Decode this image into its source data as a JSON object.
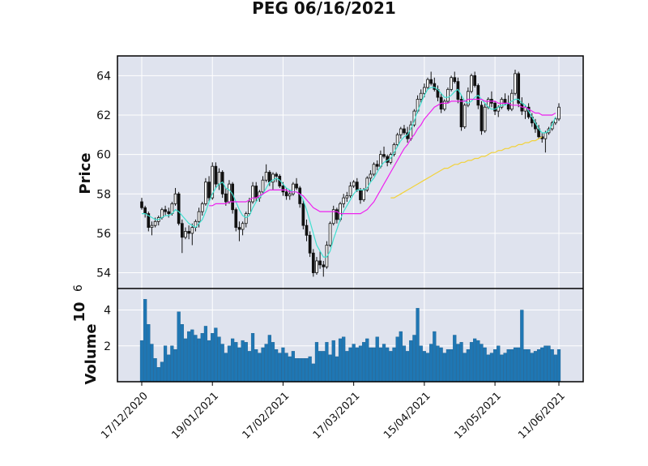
{
  "chart_data": {
    "type": "candlestick",
    "title": "PEG  06/16/2021",
    "price_panel": {
      "ylabel": "Price",
      "ylim": [
        53.2,
        65.0
      ],
      "yticks": [
        54,
        56,
        58,
        60,
        62,
        64
      ],
      "candles": [
        [
          57.6,
          57.8,
          57.2,
          57.3
        ],
        [
          57.3,
          57.4,
          56.8,
          57.0
        ],
        [
          57.0,
          57.1,
          56.1,
          56.3
        ],
        [
          56.3,
          56.6,
          55.9,
          56.4
        ],
        [
          56.4,
          56.8,
          56.3,
          56.6
        ],
        [
          56.6,
          56.9,
          56.4,
          56.8
        ],
        [
          56.8,
          57.3,
          56.7,
          57.2
        ],
        [
          57.2,
          57.4,
          56.9,
          57.1
        ],
        [
          57.1,
          57.3,
          56.8,
          57.0
        ],
        [
          57.0,
          57.6,
          56.9,
          57.5
        ],
        [
          57.5,
          58.3,
          57.4,
          58.0
        ],
        [
          58.0,
          58.1,
          56.4,
          56.5
        ],
        [
          56.5,
          56.7,
          55.0,
          55.8
        ],
        [
          55.8,
          56.3,
          55.7,
          56.1
        ],
        [
          56.1,
          56.4,
          55.7,
          56.0
        ],
        [
          56.0,
          56.5,
          55.4,
          56.3
        ],
        [
          56.3,
          56.7,
          56.1,
          56.6
        ],
        [
          56.6,
          57.3,
          56.3,
          57.1
        ],
        [
          57.1,
          57.6,
          56.9,
          57.5
        ],
        [
          57.5,
          58.8,
          57.4,
          58.6
        ],
        [
          58.6,
          58.9,
          57.6,
          57.8
        ],
        [
          57.8,
          59.6,
          57.7,
          59.4
        ],
        [
          59.4,
          59.6,
          58.3,
          58.5
        ],
        [
          58.5,
          59.3,
          58.2,
          59.1
        ],
        [
          59.1,
          59.2,
          57.8,
          58.0
        ],
        [
          58.0,
          58.3,
          57.4,
          57.6
        ],
        [
          57.6,
          58.7,
          57.5,
          58.5
        ],
        [
          58.5,
          58.6,
          57.0,
          57.2
        ],
        [
          57.2,
          57.3,
          56.1,
          56.3
        ],
        [
          56.3,
          56.6,
          55.6,
          56.2
        ],
        [
          56.2,
          56.6,
          55.9,
          56.5
        ],
        [
          56.5,
          57.1,
          56.3,
          57.0
        ],
        [
          57.0,
          57.8,
          56.9,
          57.6
        ],
        [
          57.6,
          58.6,
          57.5,
          58.4
        ],
        [
          58.4,
          58.6,
          57.6,
          57.8
        ],
        [
          57.8,
          58.2,
          57.6,
          58.1
        ],
        [
          58.1,
          58.9,
          58.0,
          58.7
        ],
        [
          58.7,
          59.5,
          58.6,
          59.1
        ],
        [
          59.1,
          59.2,
          58.4,
          58.6
        ],
        [
          58.6,
          59.1,
          58.2,
          59.0
        ],
        [
          59.0,
          59.1,
          58.6,
          58.9
        ],
        [
          58.9,
          59.0,
          58.3,
          58.4
        ],
        [
          58.4,
          58.6,
          57.9,
          58.1
        ],
        [
          58.1,
          58.3,
          57.7,
          57.9
        ],
        [
          57.9,
          58.2,
          57.7,
          58.0
        ],
        [
          58.0,
          58.6,
          57.9,
          58.5
        ],
        [
          58.5,
          58.8,
          58.2,
          58.3
        ],
        [
          58.3,
          58.4,
          57.3,
          57.5
        ],
        [
          57.5,
          57.7,
          56.2,
          56.4
        ],
        [
          56.4,
          56.7,
          55.6,
          55.9
        ],
        [
          55.9,
          56.1,
          54.8,
          55.0
        ],
        [
          55.0,
          55.2,
          53.8,
          54.0
        ],
        [
          54.0,
          54.8,
          53.9,
          54.6
        ],
        [
          54.6,
          55.1,
          54.2,
          54.4
        ],
        [
          54.4,
          54.6,
          53.8,
          54.3
        ],
        [
          54.3,
          55.6,
          54.2,
          55.4
        ],
        [
          55.4,
          56.6,
          55.3,
          56.5
        ],
        [
          56.5,
          57.4,
          56.4,
          57.2
        ],
        [
          57.2,
          57.3,
          56.5,
          56.7
        ],
        [
          56.7,
          57.6,
          56.6,
          57.5
        ],
        [
          57.5,
          58.0,
          57.3,
          57.8
        ],
        [
          57.8,
          58.1,
          57.6,
          57.9
        ],
        [
          57.9,
          58.6,
          57.8,
          58.4
        ],
        [
          58.4,
          58.7,
          58.3,
          58.6
        ],
        [
          58.6,
          58.8,
          58.1,
          58.2
        ],
        [
          58.2,
          58.3,
          57.5,
          57.7
        ],
        [
          57.7,
          58.3,
          57.6,
          58.2
        ],
        [
          58.2,
          58.9,
          58.1,
          58.8
        ],
        [
          58.8,
          59.2,
          58.6,
          59.0
        ],
        [
          59.0,
          59.6,
          58.9,
          59.5
        ],
        [
          59.5,
          59.7,
          59.2,
          59.4
        ],
        [
          59.4,
          60.2,
          59.3,
          60.0
        ],
        [
          60.0,
          60.4,
          59.8,
          59.9
        ],
        [
          59.9,
          60.0,
          59.4,
          59.6
        ],
        [
          59.6,
          60.1,
          59.5,
          60.0
        ],
        [
          60.0,
          60.6,
          59.9,
          60.5
        ],
        [
          60.5,
          61.1,
          60.4,
          61.0
        ],
        [
          61.0,
          61.4,
          60.8,
          61.3
        ],
        [
          61.3,
          61.5,
          61.0,
          61.1
        ],
        [
          61.1,
          61.4,
          60.6,
          60.8
        ],
        [
          60.8,
          61.7,
          60.7,
          61.5
        ],
        [
          61.5,
          62.3,
          61.4,
          62.2
        ],
        [
          62.2,
          63.0,
          62.1,
          62.8
        ],
        [
          62.8,
          63.3,
          62.6,
          63.1
        ],
        [
          63.1,
          63.6,
          62.9,
          63.4
        ],
        [
          63.4,
          63.9,
          63.3,
          63.8
        ],
        [
          63.8,
          64.2,
          63.5,
          63.6
        ],
        [
          63.6,
          63.9,
          63.2,
          63.3
        ],
        [
          63.3,
          63.5,
          62.7,
          62.9
        ],
        [
          62.9,
          63.1,
          62.1,
          62.3
        ],
        [
          62.3,
          62.8,
          62.2,
          62.7
        ],
        [
          62.7,
          63.4,
          62.6,
          63.3
        ],
        [
          63.3,
          64.0,
          63.2,
          63.9
        ],
        [
          63.9,
          64.2,
          63.6,
          63.7
        ],
        [
          63.7,
          63.9,
          62.6,
          62.8
        ],
        [
          62.8,
          63.0,
          61.2,
          61.4
        ],
        [
          61.4,
          62.6,
          61.3,
          62.5
        ],
        [
          62.5,
          63.4,
          62.4,
          63.2
        ],
        [
          63.2,
          64.1,
          63.1,
          64.0
        ],
        [
          64.0,
          64.2,
          63.4,
          63.5
        ],
        [
          63.5,
          63.6,
          62.3,
          62.5
        ],
        [
          62.5,
          62.7,
          61.0,
          61.2
        ],
        [
          61.2,
          62.6,
          61.1,
          62.4
        ],
        [
          62.4,
          62.9,
          62.3,
          62.8
        ],
        [
          62.8,
          63.2,
          62.4,
          62.6
        ],
        [
          62.6,
          62.7,
          62.0,
          62.2
        ],
        [
          62.2,
          62.5,
          61.9,
          62.4
        ],
        [
          62.4,
          62.9,
          62.3,
          62.8
        ],
        [
          62.8,
          63.1,
          62.5,
          62.6
        ],
        [
          62.6,
          63.0,
          62.2,
          62.3
        ],
        [
          62.3,
          63.3,
          62.2,
          63.1
        ],
        [
          63.1,
          64.3,
          63.0,
          64.1
        ],
        [
          64.1,
          64.2,
          62.4,
          62.6
        ],
        [
          62.6,
          62.9,
          62.0,
          62.2
        ],
        [
          62.2,
          62.5,
          61.8,
          62.4
        ],
        [
          62.4,
          62.6,
          61.8,
          61.9
        ],
        [
          61.9,
          62.1,
          61.4,
          61.6
        ],
        [
          61.6,
          61.8,
          61.1,
          61.3
        ],
        [
          61.3,
          61.5,
          60.8,
          60.9
        ],
        [
          60.9,
          61.1,
          60.6,
          60.8
        ],
        [
          60.8,
          61.2,
          60.1,
          61.1
        ],
        [
          61.1,
          61.4,
          61.0,
          61.3
        ],
        [
          61.3,
          61.7,
          61.2,
          61.6
        ],
        [
          61.6,
          61.9,
          61.5,
          61.8
        ],
        [
          61.8,
          62.6,
          61.7,
          62.4
        ]
      ],
      "sma_cyan": [
        57.0,
        57.0,
        56.9,
        56.8,
        56.7,
        56.7,
        56.8,
        56.9,
        56.9,
        57.0,
        57.2,
        57.1,
        56.9,
        56.7,
        56.5,
        56.4,
        56.3,
        56.5,
        56.7,
        57.1,
        57.6,
        58.0,
        58.3,
        58.5,
        58.6,
        58.3,
        58.2,
        58.0,
        57.6,
        57.2,
        56.9,
        56.8,
        56.9,
        57.3,
        57.6,
        57.8,
        58.0,
        58.3,
        58.6,
        58.7,
        58.8,
        58.7,
        58.5,
        58.3,
        58.2,
        58.1,
        58.1,
        58.0,
        57.7,
        57.2,
        56.6,
        56.0,
        55.4,
        55.1,
        54.8,
        54.8,
        55.1,
        55.7,
        56.2,
        56.7,
        57.1,
        57.4,
        57.7,
        58.0,
        58.2,
        58.2,
        58.2,
        58.3,
        58.6,
        58.8,
        59.1,
        59.4,
        59.6,
        59.7,
        59.8,
        60.1,
        60.4,
        60.7,
        60.9,
        61.0,
        61.3,
        61.7,
        62.2,
        62.6,
        63.0,
        63.3,
        63.4,
        63.4,
        63.3,
        63.1,
        62.9,
        62.9,
        63.0,
        63.2,
        63.3,
        63.0,
        62.7,
        62.6,
        62.7,
        62.9,
        63.0,
        62.8,
        62.6,
        62.4,
        62.3,
        62.3,
        62.4,
        62.5,
        62.5,
        62.6,
        62.7,
        62.8,
        62.8,
        62.6,
        62.5,
        62.2,
        61.9,
        61.6,
        61.3,
        61.1,
        61.1,
        61.2,
        61.5,
        61.9
      ],
      "sma_magenta": [
        null,
        null,
        null,
        null,
        null,
        null,
        null,
        null,
        null,
        null,
        null,
        null,
        null,
        null,
        null,
        null,
        null,
        null,
        null,
        null,
        57.4,
        57.4,
        57.5,
        57.5,
        57.5,
        57.5,
        57.6,
        57.6,
        57.6,
        57.6,
        57.6,
        57.6,
        57.7,
        57.8,
        57.8,
        57.9,
        58.0,
        58.1,
        58.2,
        58.2,
        58.2,
        58.2,
        58.2,
        58.2,
        58.1,
        58.1,
        58.1,
        58.0,
        57.9,
        57.7,
        57.5,
        57.3,
        57.2,
        57.1,
        57.1,
        57.1,
        57.1,
        57.1,
        57.1,
        57.0,
        57.0,
        57.0,
        57.0,
        57.0,
        57.0,
        57.0,
        57.1,
        57.2,
        57.4,
        57.6,
        57.9,
        58.2,
        58.5,
        58.8,
        59.1,
        59.4,
        59.7,
        60.0,
        60.3,
        60.5,
        60.8,
        61.0,
        61.3,
        61.5,
        61.8,
        62.0,
        62.2,
        62.4,
        62.5,
        62.6,
        62.6,
        62.6,
        62.7,
        62.7,
        62.7,
        62.7,
        62.7,
        62.8,
        62.8,
        62.8,
        62.8,
        62.8,
        62.7,
        62.7,
        62.7,
        62.7,
        62.6,
        62.6,
        62.6,
        62.6,
        62.5,
        62.5,
        62.5,
        62.4,
        62.4,
        62.3,
        62.2,
        62.1,
        62.1,
        62.0,
        62.0,
        62.0,
        62.0,
        62.1
      ],
      "sma_yellow": [
        null,
        null,
        null,
        null,
        null,
        null,
        null,
        null,
        null,
        null,
        null,
        null,
        null,
        null,
        null,
        null,
        null,
        null,
        null,
        null,
        null,
        null,
        null,
        null,
        null,
        null,
        null,
        null,
        null,
        null,
        null,
        null,
        null,
        null,
        null,
        null,
        null,
        null,
        null,
        null,
        null,
        null,
        null,
        null,
        null,
        null,
        null,
        null,
        null,
        null,
        null,
        null,
        null,
        null,
        null,
        null,
        null,
        null,
        null,
        null,
        null,
        null,
        null,
        null,
        null,
        null,
        null,
        null,
        null,
        null,
        null,
        null,
        null,
        null,
        57.8,
        57.8,
        57.9,
        58.0,
        58.1,
        58.2,
        58.3,
        58.4,
        58.5,
        58.6,
        58.7,
        58.8,
        58.9,
        59.0,
        59.1,
        59.2,
        59.3,
        59.3,
        59.4,
        59.5,
        59.5,
        59.6,
        59.6,
        59.7,
        59.7,
        59.8,
        59.8,
        59.9,
        59.9,
        60.0,
        60.1,
        60.1,
        60.2,
        60.2,
        60.3,
        60.3,
        60.4,
        60.4,
        60.5,
        60.5,
        60.6,
        60.6,
        60.7,
        60.7,
        60.8,
        60.9
      ]
    },
    "volume_panel": {
      "ylabel": "Volume",
      "exponent": "6",
      "ylim": [
        0,
        5.2
      ],
      "yticks": [
        2,
        4
      ],
      "unit": "millions",
      "values": [
        2.3,
        4.6,
        3.2,
        2.1,
        1.3,
        0.8,
        1.1,
        2.0,
        1.5,
        2.0,
        1.8,
        3.9,
        3.2,
        2.4,
        2.8,
        2.9,
        2.6,
        2.4,
        2.7,
        3.1,
        2.3,
        2.7,
        3.0,
        2.5,
        2.1,
        1.6,
        2.0,
        2.4,
        2.2,
        1.9,
        2.3,
        2.2,
        1.7,
        2.7,
        1.8,
        1.6,
        1.9,
        2.1,
        2.6,
        2.2,
        1.8,
        1.6,
        1.9,
        1.6,
        1.4,
        1.7,
        1.3,
        1.3,
        1.3,
        1.3,
        1.4,
        1.0,
        2.2,
        1.7,
        1.7,
        2.2,
        1.5,
        2.3,
        1.4,
        2.4,
        2.5,
        1.7,
        1.9,
        2.1,
        1.9,
        2.0,
        2.2,
        2.4,
        1.9,
        1.9,
        2.5,
        1.9,
        2.1,
        1.9,
        1.7,
        1.9,
        2.5,
        2.8,
        2.0,
        1.7,
        2.3,
        2.6,
        4.1,
        2.0,
        1.7,
        1.6,
        2.1,
        2.8,
        2.0,
        1.9,
        1.6,
        1.8,
        1.8,
        2.6,
        2.1,
        2.2,
        1.6,
        1.8,
        2.2,
        2.4,
        2.3,
        2.1,
        1.9,
        1.5,
        1.6,
        1.8,
        2.0,
        1.5,
        1.6,
        1.8,
        1.8,
        1.9,
        1.9,
        4.0,
        1.8,
        1.8,
        1.6,
        1.7,
        1.8,
        1.9,
        2.0,
        2.0,
        1.8,
        1.5,
        1.8
      ]
    },
    "xtick_labels": [
      "17/12/2020",
      "19/01/2021",
      "17/02/2021",
      "17/03/2021",
      "15/04/2021",
      "13/05/2021",
      "11/06/2021"
    ],
    "colors": {
      "panel_bg": "#dfe3ee",
      "up_candle": "#ffffff",
      "down_candle": "#111111",
      "sma_cyan": "#40e0d0",
      "sma_magenta": "#ee22ee",
      "sma_yellow": "#f2d23a",
      "volume_bar": "#1f77b4"
    }
  }
}
